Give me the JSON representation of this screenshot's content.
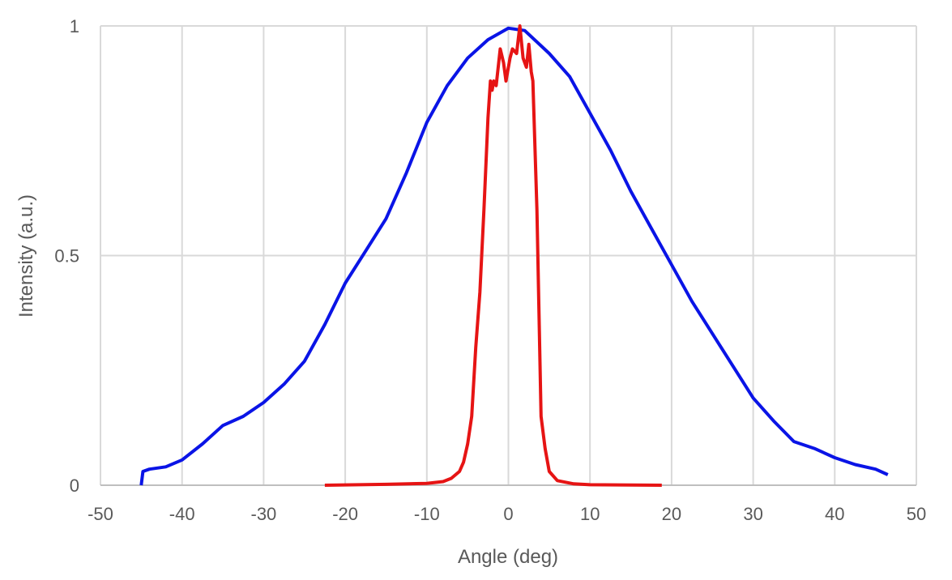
{
  "chart_data": {
    "type": "line",
    "title": "",
    "xlabel": "Angle (deg)",
    "ylabel": "Intensity (a.u.)",
    "xlim": [
      -50,
      50
    ],
    "ylim": [
      0,
      1
    ],
    "xticks": [
      "-50",
      "-40",
      "-30",
      "-20",
      "-10",
      "0",
      "10",
      "20",
      "30",
      "40",
      "50"
    ],
    "yticks": [
      "0",
      "0.5",
      "1"
    ],
    "grid": true,
    "legend": "none",
    "series": [
      {
        "color": "#0a14e6",
        "x": [
          -45,
          -44.8,
          -44,
          -42,
          -40,
          -37.5,
          -35,
          -32.5,
          -30,
          -27.5,
          -25,
          -22.5,
          -20,
          -17.5,
          -15,
          -12.5,
          -10,
          -7.5,
          -5,
          -2.5,
          0,
          2,
          5,
          7.5,
          10,
          12.5,
          15,
          17.5,
          20,
          22.5,
          25,
          27.5,
          30,
          32.5,
          35,
          37.5,
          40,
          42.5,
          45,
          46.5
        ],
        "y": [
          0,
          0.03,
          0.035,
          0.04,
          0.055,
          0.09,
          0.13,
          0.15,
          0.18,
          0.22,
          0.27,
          0.35,
          0.44,
          0.51,
          0.58,
          0.68,
          0.79,
          0.87,
          0.93,
          0.97,
          0.995,
          0.99,
          0.94,
          0.89,
          0.81,
          0.73,
          0.64,
          0.56,
          0.48,
          0.4,
          0.33,
          0.26,
          0.19,
          0.14,
          0.095,
          0.08,
          0.06,
          0.045,
          0.035,
          0.023
        ]
      },
      {
        "color": "#e61414",
        "x": [
          -22.5,
          -15,
          -10,
          -8,
          -7,
          -6,
          -5.5,
          -5,
          -4.5,
          -4,
          -3.5,
          -3,
          -2.5,
          -2.2,
          -2,
          -1.8,
          -1.5,
          -1,
          -0.6,
          -0.3,
          0.2,
          0.5,
          1,
          1.4,
          1.8,
          2.2,
          2.5,
          2.8,
          3,
          3.5,
          4,
          4.5,
          5,
          6,
          8,
          10,
          18.8
        ],
        "y": [
          0,
          0.002,
          0.004,
          0.008,
          0.015,
          0.03,
          0.05,
          0.09,
          0.15,
          0.3,
          0.42,
          0.6,
          0.8,
          0.88,
          0.86,
          0.88,
          0.87,
          0.95,
          0.92,
          0.88,
          0.93,
          0.95,
          0.94,
          1.0,
          0.93,
          0.91,
          0.96,
          0.9,
          0.88,
          0.6,
          0.15,
          0.08,
          0.03,
          0.01,
          0.003,
          0.001,
          0
        ]
      }
    ]
  }
}
